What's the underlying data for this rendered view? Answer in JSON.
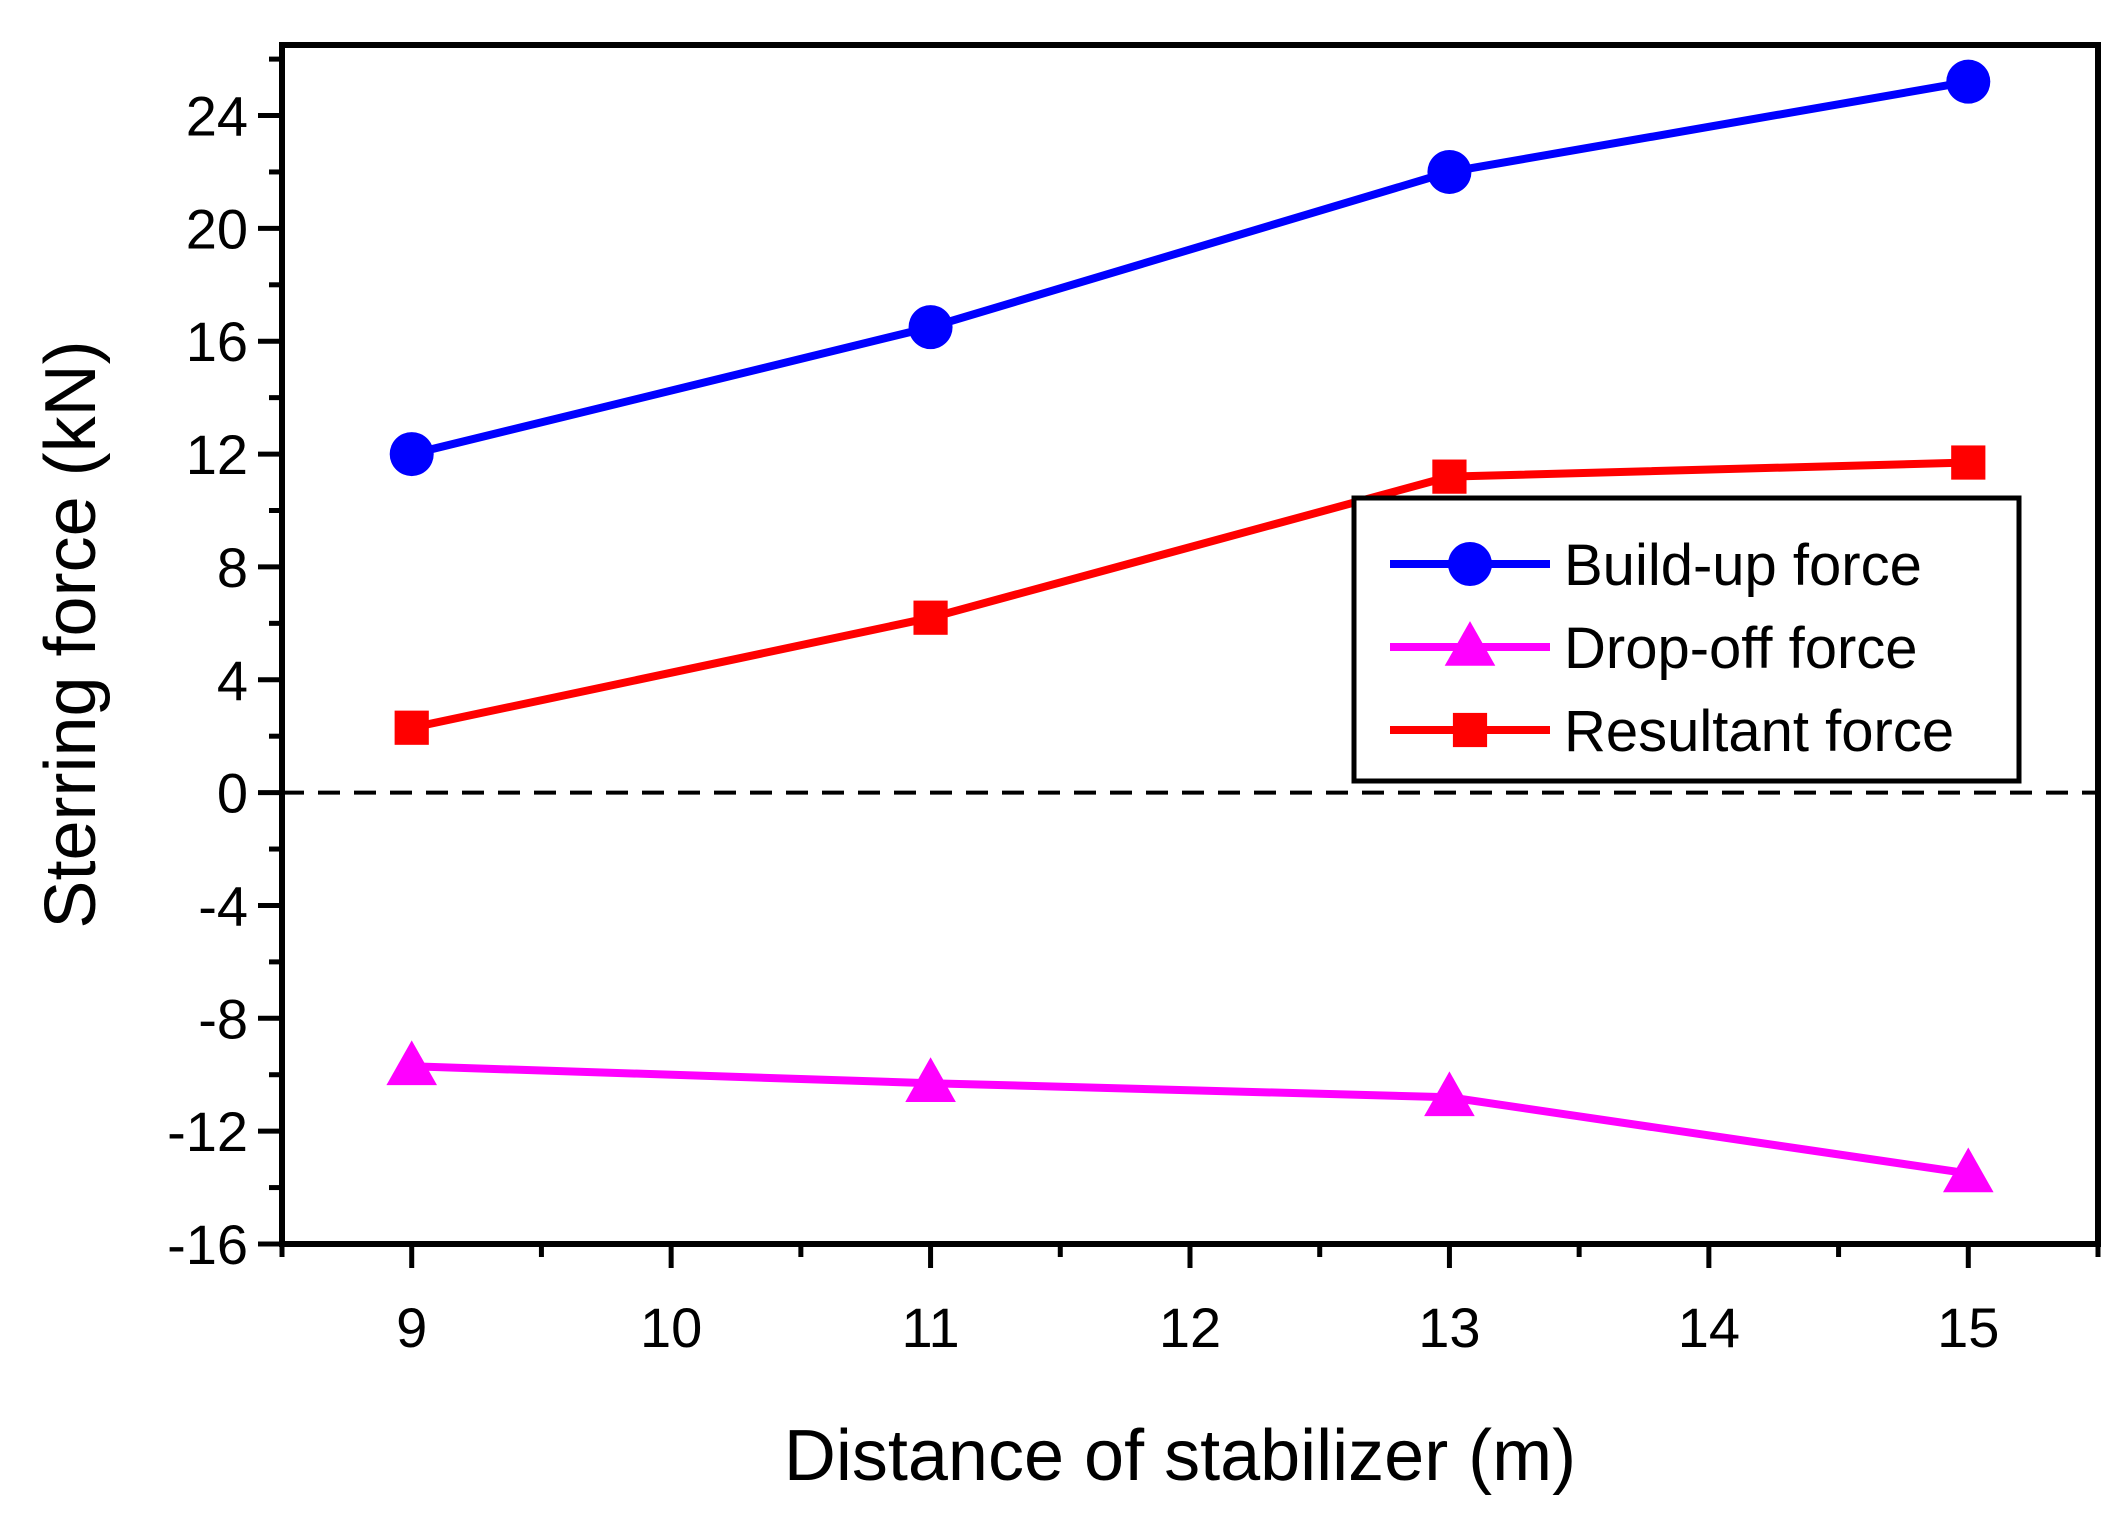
{
  "chart_data": {
    "type": "line",
    "title": "",
    "xlabel": "Distance of stabilizer (m)",
    "ylabel": "Sterring force (kN)",
    "xlim": [
      8.5,
      15.5
    ],
    "ylim": [
      -16,
      26.5
    ],
    "x_ticks": [
      9,
      10,
      11,
      12,
      13,
      14,
      15
    ],
    "x_tick_labels": [
      "9",
      "10",
      "11",
      "12",
      "13",
      "14",
      "15"
    ],
    "y_ticks": [
      -16,
      -12,
      -8,
      -4,
      0,
      4,
      8,
      12,
      16,
      20,
      24
    ],
    "y_tick_labels": [
      "-16",
      "-12",
      "-8",
      "-4",
      "0",
      "4",
      "8",
      "12",
      "16",
      "20",
      "24"
    ],
    "x": [
      9,
      11,
      13,
      15
    ],
    "series": [
      {
        "name": "Build-up force",
        "values": [
          12.0,
          16.5,
          22.0,
          25.2
        ],
        "color": "#0000ff",
        "marker": "circle"
      },
      {
        "name": "Drop-off force",
        "values": [
          -9.7,
          -10.3,
          -10.8,
          -13.5
        ],
        "color": "#ff00ff",
        "marker": "triangle"
      },
      {
        "name": "Resultant force",
        "values": [
          2.3,
          6.2,
          11.2,
          11.7
        ],
        "color": "#ff0000",
        "marker": "square"
      }
    ],
    "reference_line": {
      "y": 0,
      "style": "dashed",
      "color": "#000000"
    },
    "legend": "right-middle",
    "grid": false
  }
}
